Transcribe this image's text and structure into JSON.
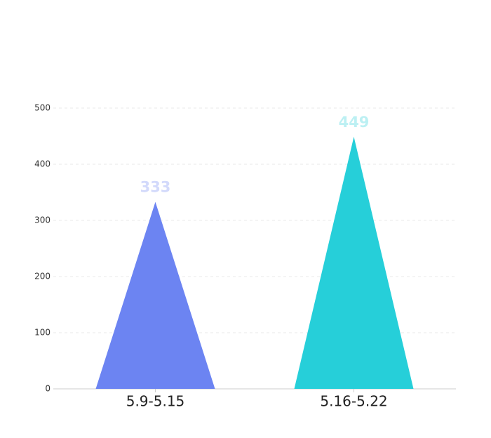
{
  "chart_data": {
    "type": "pictorial-triangle",
    "categories": [
      "5.9-5.15",
      "5.16-5.22"
    ],
    "values": [
      333,
      449
    ],
    "colors": [
      "#6c84f2",
      "#26cfd9"
    ],
    "ylim": [
      0,
      500
    ],
    "yticks": [
      0,
      100,
      200,
      300,
      400,
      500
    ],
    "grid": true
  }
}
